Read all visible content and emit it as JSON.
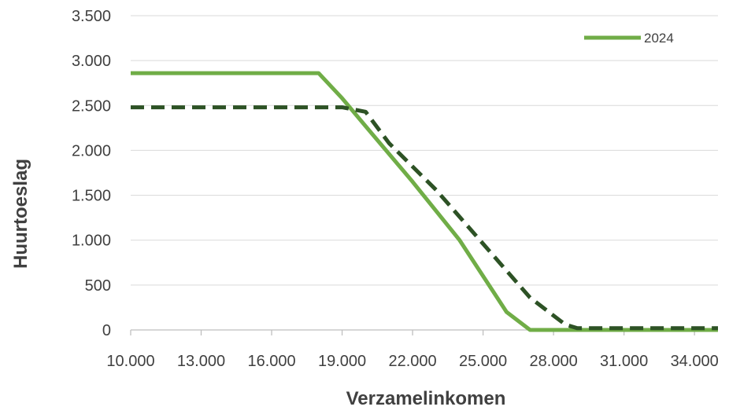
{
  "chart_data": {
    "type": "line",
    "xlabel": "Verzamelinkomen",
    "ylabel": "Huurtoeslag",
    "xlim": [
      10000,
      35000
    ],
    "ylim": [
      0,
      3500
    ],
    "x_ticks": [
      10000,
      13000,
      16000,
      19000,
      22000,
      25000,
      28000,
      31000,
      34000
    ],
    "x_tick_labels": [
      "10.000",
      "13.000",
      "16.000",
      "19.000",
      "22.000",
      "25.000",
      "28.000",
      "31.000",
      "34.000"
    ],
    "y_ticks": [
      0,
      500,
      1000,
      1500,
      2000,
      2500,
      3000,
      3500
    ],
    "y_tick_labels": [
      "0",
      "500",
      "1.000",
      "1.500",
      "2.000",
      "2.500",
      "3.000",
      "3.500"
    ],
    "grid": "horizontal",
    "legend_position": "top-right",
    "series": [
      {
        "name": "2024",
        "style": "solid",
        "color": "#70AD47",
        "x": [
          10000,
          18000,
          19000,
          20000,
          22000,
          24000,
          26000,
          27000,
          35000
        ],
        "y": [
          2860,
          2860,
          2580,
          2270,
          1650,
          1000,
          200,
          0,
          0
        ]
      },
      {
        "name": "",
        "style": "dashed",
        "color": "#2D5225",
        "x": [
          10000,
          19000,
          20000,
          21000,
          23000,
          25000,
          27000,
          28500,
          29000,
          35000
        ],
        "y": [
          2480,
          2480,
          2430,
          2080,
          1560,
          960,
          360,
          60,
          20,
          20
        ]
      }
    ]
  }
}
